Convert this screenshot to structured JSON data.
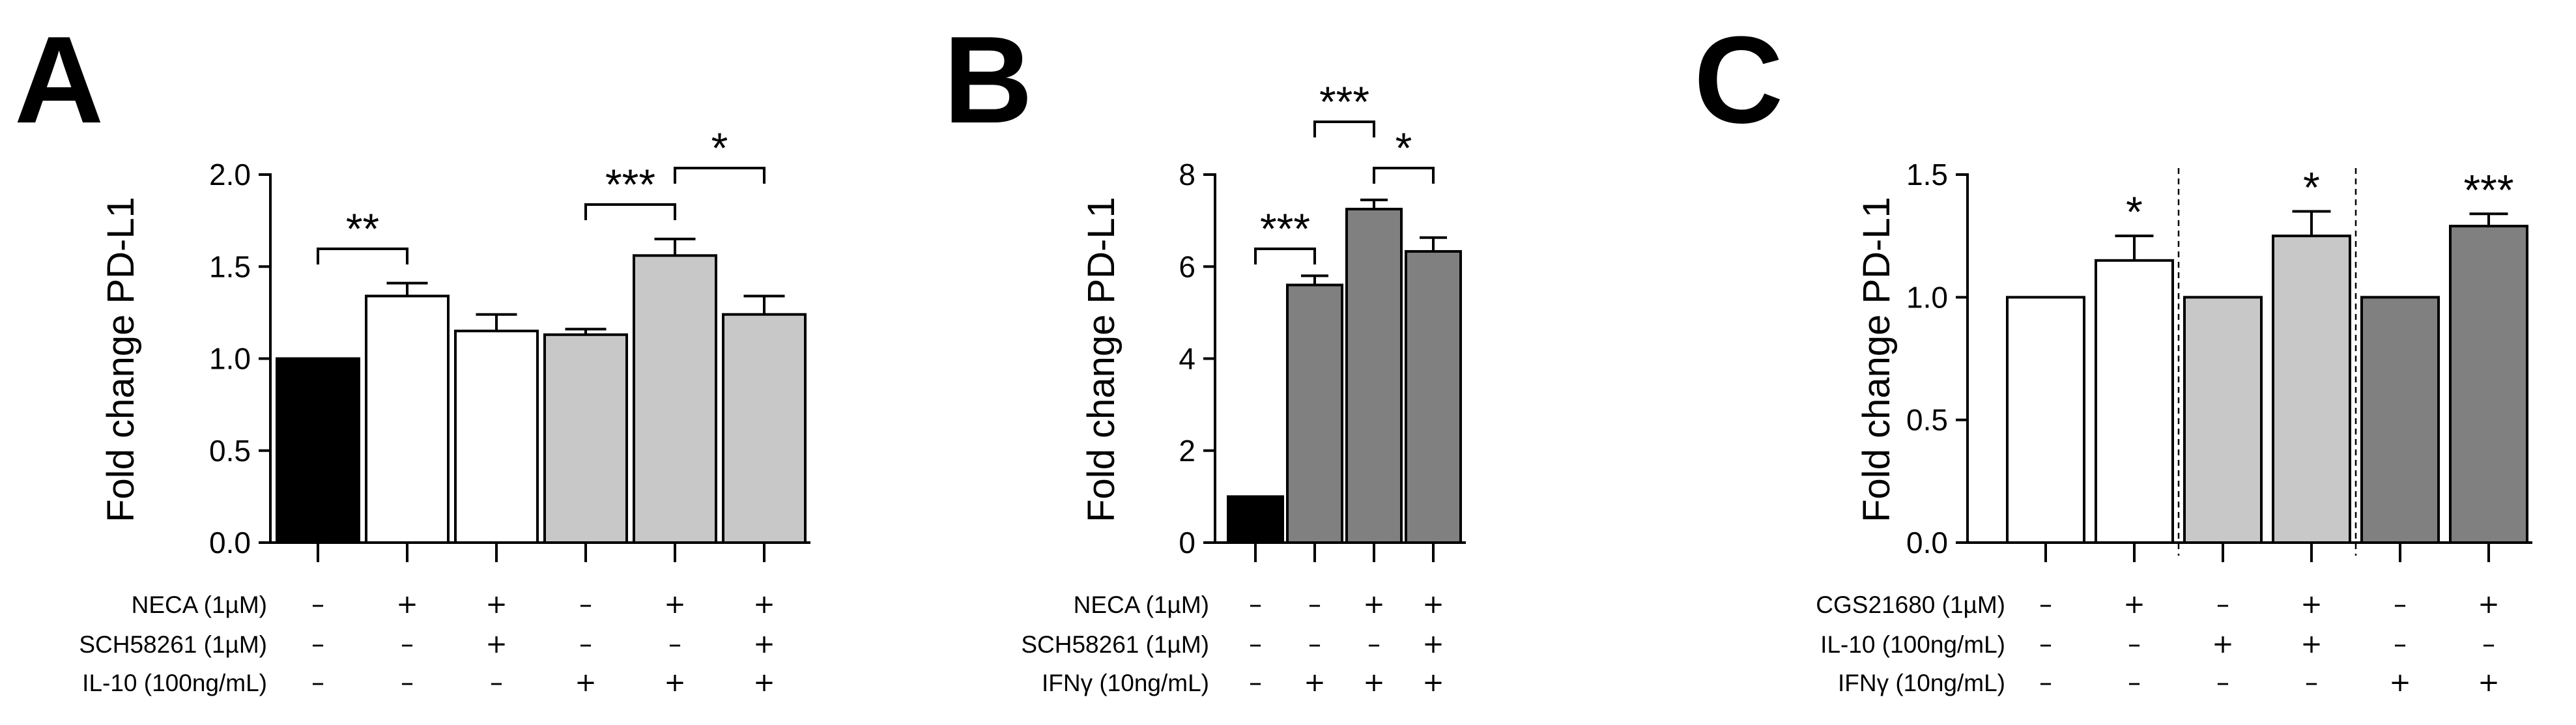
{
  "chart_data": [
    {
      "type": "bar",
      "panel": "A",
      "ylabel": "Fold change PD-L1",
      "ylim": [
        0,
        2.0
      ],
      "yticks": [
        "0.0",
        "0.5",
        "1.0",
        "1.5",
        "2.0"
      ],
      "values": [
        1.0,
        1.34,
        1.15,
        1.13,
        1.56,
        1.24
      ],
      "errors": [
        0.0,
        0.07,
        0.09,
        0.03,
        0.09,
        0.1
      ],
      "colors": [
        "#000000",
        "#ffffff",
        "#ffffff",
        "#c8c8c8",
        "#c8c8c8",
        "#c8c8c8"
      ],
      "conditions": [
        {
          "label": "NECA (1µM)",
          "signs": [
            "–",
            "+",
            "+",
            "–",
            "+",
            "+"
          ]
        },
        {
          "label": "SCH58261 (1µM)",
          "signs": [
            "–",
            "–",
            "+",
            "–",
            "–",
            "+"
          ]
        },
        {
          "label": "IL-10 (100ng/mL)",
          "signs": [
            "–",
            "–",
            "–",
            "+",
            "+",
            "+"
          ]
        }
      ],
      "significance": [
        {
          "from": 0,
          "to": 1,
          "label": "**"
        },
        {
          "from": 3,
          "to": 4,
          "label": "***"
        },
        {
          "from": 4,
          "to": 5,
          "label": "*"
        }
      ]
    },
    {
      "type": "bar",
      "panel": "B",
      "ylabel": "Fold change PD-L1",
      "ylim": [
        0,
        8
      ],
      "yticks": [
        "0",
        "2",
        "4",
        "6",
        "8"
      ],
      "values": [
        1.0,
        5.6,
        7.25,
        6.33
      ],
      "errors": [
        0.0,
        0.2,
        0.2,
        0.3
      ],
      "colors": [
        "#000000",
        "#808080",
        "#808080",
        "#808080"
      ],
      "conditions": [
        {
          "label": "NECA (1µM)",
          "signs": [
            "–",
            "–",
            "+",
            "+"
          ]
        },
        {
          "label": "SCH58261 (1µM)",
          "signs": [
            "–",
            "–",
            "–",
            "+"
          ]
        },
        {
          "label": "IFNγ (10ng/mL)",
          "signs": [
            "–",
            "+",
            "+",
            "+"
          ]
        }
      ],
      "significance": [
        {
          "from": 0,
          "to": 1,
          "label": "***"
        },
        {
          "from": 1,
          "to": 2,
          "label": "***"
        },
        {
          "from": 2,
          "to": 3,
          "label": "*"
        }
      ]
    },
    {
      "type": "bar",
      "panel": "C",
      "ylabel": "Fold change PD-L1",
      "ylim": [
        0,
        1.5
      ],
      "yticks": [
        "0.0",
        "0.5",
        "1.0",
        "1.5"
      ],
      "values": [
        1.0,
        1.15,
        1.0,
        1.25,
        1.0,
        1.29
      ],
      "errors": [
        0.0,
        0.1,
        0.0,
        0.1,
        0.0,
        0.05
      ],
      "colors": [
        "#ffffff",
        "#ffffff",
        "#c8c8c8",
        "#c8c8c8",
        "#808080",
        "#808080"
      ],
      "conditions": [
        {
          "label": "CGS21680 (1µM)",
          "signs": [
            "–",
            "+",
            "–",
            "+",
            "–",
            "+"
          ]
        },
        {
          "label": "IL-10 (100ng/mL)",
          "signs": [
            "–",
            "–",
            "+",
            "+",
            "–",
            "–"
          ]
        },
        {
          "label": "IFNγ (10ng/mL)",
          "signs": [
            "–",
            "–",
            "–",
            "–",
            "+",
            "+"
          ]
        }
      ],
      "stars": [
        "",
        "*",
        "",
        "*",
        "",
        "***"
      ],
      "dividers_after": [
        1,
        3
      ]
    }
  ]
}
